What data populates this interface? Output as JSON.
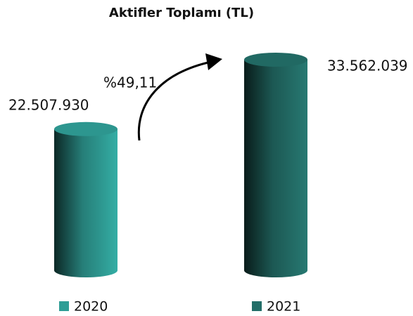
{
  "chart_data": {
    "type": "cylinder",
    "title": "Aktifler Toplamı (TL)",
    "categories": [
      "2020",
      "2021"
    ],
    "values": [
      22507930,
      33562039
    ],
    "value_labels": [
      "22.507.930",
      "33.562.039"
    ],
    "colors": [
      "#2f9e96",
      "#236e68"
    ],
    "annotation": "%49,11",
    "legend": true
  }
}
